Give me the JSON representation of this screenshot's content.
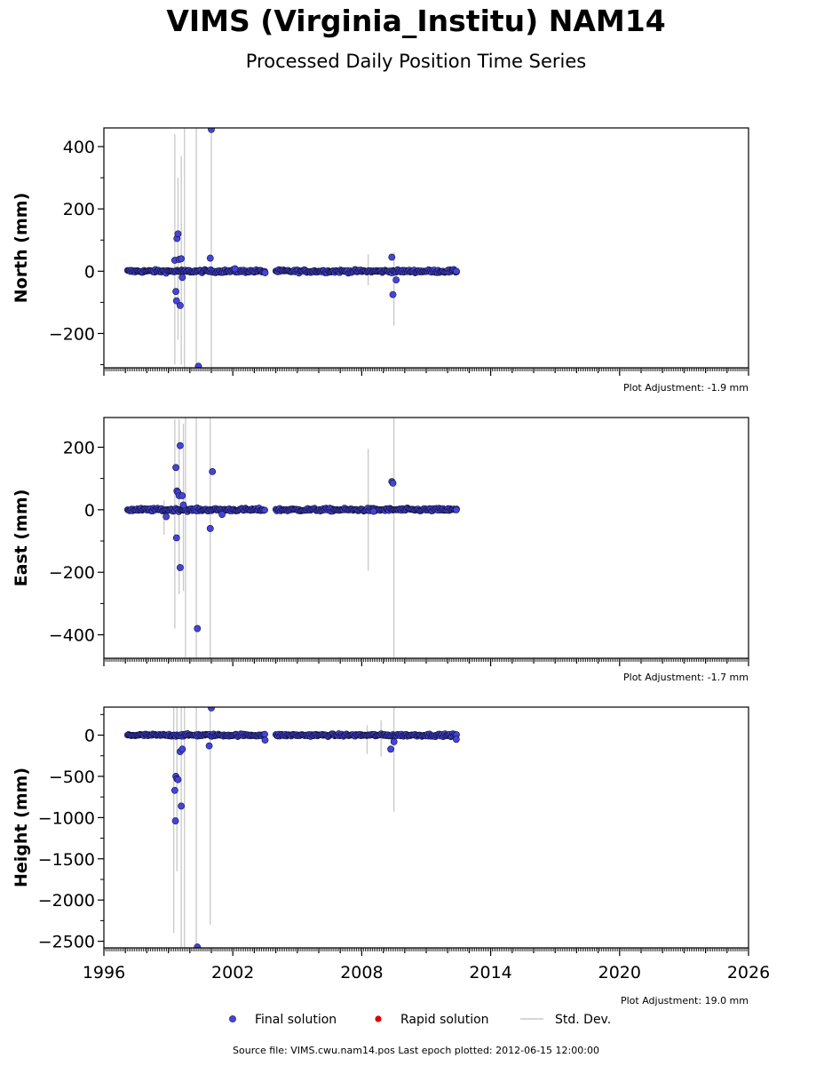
{
  "header": {
    "title": "VIMS (Virginia_Institu) NAM14",
    "subtitle": "Processed Daily Position Time Series"
  },
  "footer": {
    "text": "Source file: VIMS.cwu.nam14.pos  Last epoch plotted: 2012-06-15 12:00:00"
  },
  "legend": {
    "items": [
      {
        "label": "Final solution",
        "color": "#4444dd"
      },
      {
        "label": "Rapid solution",
        "color": "#dd0000"
      },
      {
        "label": "Std. Dev.",
        "color": "#c8c8c8"
      }
    ]
  },
  "chart_data": [
    {
      "type": "scatter",
      "ylabel": "North (mm)",
      "xlim": [
        1996,
        2026
      ],
      "ylim": [
        -310,
        460
      ],
      "yticks": [
        -200,
        0,
        200,
        400
      ],
      "xticks": [
        1996,
        2002,
        2008,
        2014,
        2020,
        2026
      ],
      "show_xtick_labels": false,
      "adjustment": "Plot Adjustment: -1.9 mm",
      "baseline": 0,
      "noise": 2.5,
      "segments": [
        [
          1997.1,
          2003.5
        ],
        [
          2004.0,
          2012.45
        ]
      ],
      "outliers": [
        [
          1999.4,
          105
        ],
        [
          1999.45,
          120
        ],
        [
          1999.3,
          35
        ],
        [
          1999.5,
          38
        ],
        [
          1999.6,
          40
        ],
        [
          1999.35,
          -65
        ],
        [
          1999.38,
          -95
        ],
        [
          1999.55,
          -110
        ],
        [
          1999.65,
          -20
        ],
        [
          2000.4,
          -305
        ],
        [
          2001.0,
          455
        ],
        [
          2000.95,
          42
        ],
        [
          2002.1,
          8
        ],
        [
          2003.5,
          -5
        ],
        [
          2009.4,
          45
        ],
        [
          2009.45,
          -75
        ],
        [
          2009.6,
          -28
        ],
        [
          2012.4,
          0
        ]
      ],
      "errorbars": [
        [
          1999.3,
          -300,
          440
        ],
        [
          1999.45,
          -220,
          300
        ],
        [
          1999.6,
          -300,
          370
        ],
        [
          1999.75,
          -310,
          460
        ],
        [
          2000.3,
          -310,
          460
        ],
        [
          2001.0,
          -310,
          460
        ],
        [
          2008.3,
          -45,
          55
        ],
        [
          2009.5,
          -175,
          60
        ]
      ]
    },
    {
      "type": "scatter",
      "ylabel": "East (mm)",
      "xlim": [
        1996,
        2026
      ],
      "ylim": [
        -475,
        295
      ],
      "yticks": [
        -400,
        -200,
        0,
        200
      ],
      "xticks": [
        1996,
        2002,
        2008,
        2014,
        2020,
        2026
      ],
      "show_xtick_labels": false,
      "adjustment": "Plot Adjustment: -1.7 mm",
      "baseline": 0,
      "noise": 2.5,
      "segments": [
        [
          1997.1,
          2003.5
        ],
        [
          2004.0,
          2012.45
        ]
      ],
      "outliers": [
        [
          1998.9,
          -22
        ],
        [
          1999.35,
          135
        ],
        [
          1999.4,
          60
        ],
        [
          1999.45,
          55
        ],
        [
          1999.5,
          45
        ],
        [
          1999.55,
          205
        ],
        [
          1999.65,
          45
        ],
        [
          1999.38,
          -90
        ],
        [
          1999.55,
          -185
        ],
        [
          1999.7,
          15
        ],
        [
          2000.35,
          -380
        ],
        [
          2000.95,
          -60
        ],
        [
          2001.05,
          122
        ],
        [
          2001.5,
          -15
        ],
        [
          2008.55,
          -5
        ],
        [
          2009.4,
          90
        ],
        [
          2009.45,
          85
        ],
        [
          2012.4,
          0
        ]
      ],
      "errorbars": [
        [
          1998.8,
          -80,
          30
        ],
        [
          1999.3,
          -380,
          290
        ],
        [
          1999.5,
          -270,
          290
        ],
        [
          1999.7,
          -260,
          275
        ],
        [
          1999.8,
          -475,
          295
        ],
        [
          2000.3,
          -475,
          295
        ],
        [
          2000.95,
          -475,
          295
        ],
        [
          2008.3,
          -195,
          195
        ],
        [
          2009.5,
          -475,
          295
        ]
      ]
    },
    {
      "type": "scatter",
      "ylabel": "Height (mm)",
      "xlim": [
        1996,
        2026
      ],
      "ylim": [
        -2580,
        340
      ],
      "yticks": [
        -2500,
        -2000,
        -1500,
        -1000,
        -500,
        0
      ],
      "xticks": [
        1996,
        2002,
        2008,
        2014,
        2020,
        2026
      ],
      "show_xtick_labels": true,
      "adjustment": "Plot Adjustment: 19.0 mm",
      "baseline": 0,
      "noise": 8,
      "segments": [
        [
          1997.1,
          2003.5
        ],
        [
          2004.0,
          2012.45
        ]
      ],
      "outliers": [
        [
          1999.3,
          -670
        ],
        [
          1999.35,
          -500
        ],
        [
          1999.4,
          -530
        ],
        [
          1999.45,
          -540
        ],
        [
          1999.33,
          -1040
        ],
        [
          1999.6,
          -860
        ],
        [
          1999.55,
          -200
        ],
        [
          1999.65,
          -170
        ],
        [
          2000.35,
          -2570
        ],
        [
          2000.9,
          -130
        ],
        [
          2001.0,
          330
        ],
        [
          2003.5,
          -60
        ],
        [
          2009.35,
          -170
        ],
        [
          2009.5,
          -80
        ],
        [
          2012.4,
          -50
        ]
      ],
      "errorbars": [
        [
          1999.25,
          -2400,
          340
        ],
        [
          1999.4,
          -1650,
          340
        ],
        [
          1999.6,
          -2580,
          340
        ],
        [
          1999.75,
          -2580,
          340
        ],
        [
          2000.3,
          -2580,
          340
        ],
        [
          2000.95,
          -2300,
          340
        ],
        [
          2008.25,
          -230,
          120
        ],
        [
          2008.9,
          -260,
          180
        ],
        [
          2009.5,
          -930,
          340
        ]
      ]
    }
  ]
}
